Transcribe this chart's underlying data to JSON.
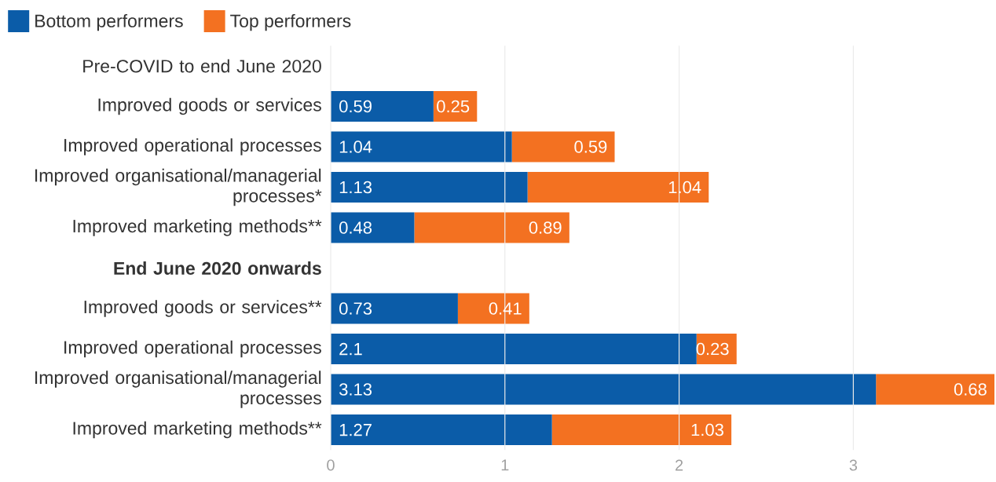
{
  "chart_data": {
    "type": "bar",
    "orientation": "horizontal",
    "stacked": true,
    "categories": [
      "Pre-COVID to end June 2020",
      "Improved goods or services",
      "Improved operational processes",
      "Improved organisational/managerial processes*",
      "Improved marketing methods**",
      "**End June 2020 onwards**",
      "Improved goods or services**",
      "Improved operational processes",
      "Improved organisational/managerial processes",
      "Improved marketing methods**"
    ],
    "series": [
      {
        "name": "Bottom performers",
        "color": "#0b5ca8",
        "values": [
          null,
          0.59,
          1.04,
          1.13,
          0.48,
          null,
          0.73,
          2.1,
          3.13,
          1.27
        ]
      },
      {
        "name": "Top performers",
        "color": "#f37121",
        "values": [
          null,
          0.25,
          0.59,
          1.04,
          0.89,
          null,
          0.41,
          0.23,
          0.68,
          1.03
        ]
      }
    ],
    "xlim": [
      0,
      3.81
    ],
    "xticks": [
      0,
      1,
      2,
      3
    ],
    "grid": "x",
    "legend": "top left",
    "data_labels": true
  }
}
